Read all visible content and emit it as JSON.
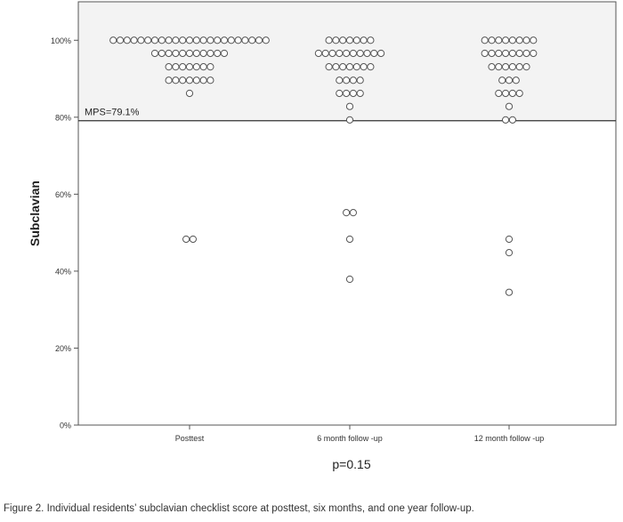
{
  "chart_data": {
    "type": "scatter",
    "subtype": "dot-plot",
    "categories": [
      "Posttest",
      "6 month follow -up",
      "12 month follow -up"
    ],
    "ylabel": "Subclavian",
    "xlabel": "",
    "ylim": [
      0,
      110
    ],
    "yticks": [
      "0%",
      "20%",
      "40%",
      "60%",
      "80%",
      "100%"
    ],
    "ytick_values": [
      0,
      20,
      40,
      60,
      80,
      100
    ],
    "grid": false,
    "reference_line": {
      "label": "MPS=79.1%",
      "value": 79.1
    },
    "stat_note": "p=0.15",
    "series": [
      {
        "category": "Posttest",
        "groups": [
          {
            "y": 100,
            "count": 23
          },
          {
            "y": 96.6,
            "count": 11
          },
          {
            "y": 93.1,
            "count": 7
          },
          {
            "y": 89.6,
            "count": 7
          },
          {
            "y": 86.2,
            "count": 1
          },
          {
            "y": 48.3,
            "count": 2
          }
        ]
      },
      {
        "category": "6 month follow -up",
        "groups": [
          {
            "y": 100,
            "count": 7
          },
          {
            "y": 96.6,
            "count": 10
          },
          {
            "y": 93.1,
            "count": 7
          },
          {
            "y": 89.6,
            "count": 4
          },
          {
            "y": 86.2,
            "count": 4
          },
          {
            "y": 82.8,
            "count": 1
          },
          {
            "y": 79.3,
            "count": 1
          },
          {
            "y": 55.2,
            "count": 2
          },
          {
            "y": 48.3,
            "count": 1
          },
          {
            "y": 37.9,
            "count": 1
          }
        ]
      },
      {
        "category": "12 month follow -up",
        "groups": [
          {
            "y": 100,
            "count": 8
          },
          {
            "y": 96.6,
            "count": 8
          },
          {
            "y": 93.1,
            "count": 6
          },
          {
            "y": 89.6,
            "count": 3
          },
          {
            "y": 86.2,
            "count": 4
          },
          {
            "y": 82.8,
            "count": 1
          },
          {
            "y": 79.3,
            "count": 2
          },
          {
            "y": 48.3,
            "count": 1
          },
          {
            "y": 44.8,
            "count": 1
          },
          {
            "y": 34.5,
            "count": 1
          }
        ]
      }
    ]
  },
  "caption": "Figure 2.  Individual residents’ subclavian checklist score at posttest, six months, and one year follow-up."
}
